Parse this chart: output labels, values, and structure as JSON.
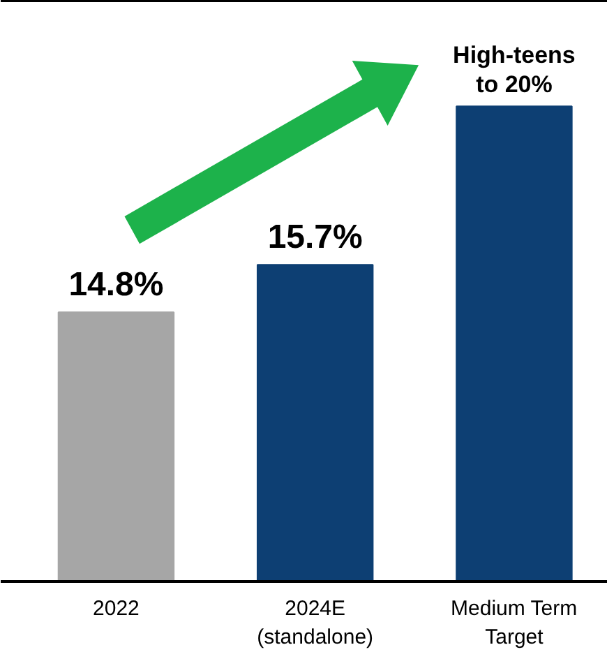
{
  "chart_data": {
    "type": "bar",
    "ylim": [
      9.7,
      20.7
    ],
    "categories": [
      "2022",
      "2024E\n(standalone)",
      "Medium Term\nTarget"
    ],
    "values": [
      14.8,
      15.7,
      18.7
    ],
    "colors": [
      "#a6a6a6",
      "#0d3f73",
      "#0d3f73"
    ],
    "value_labels": [
      "14.8%",
      "15.7%",
      "High-teens\nto 20%"
    ],
    "grid": false
  }
}
